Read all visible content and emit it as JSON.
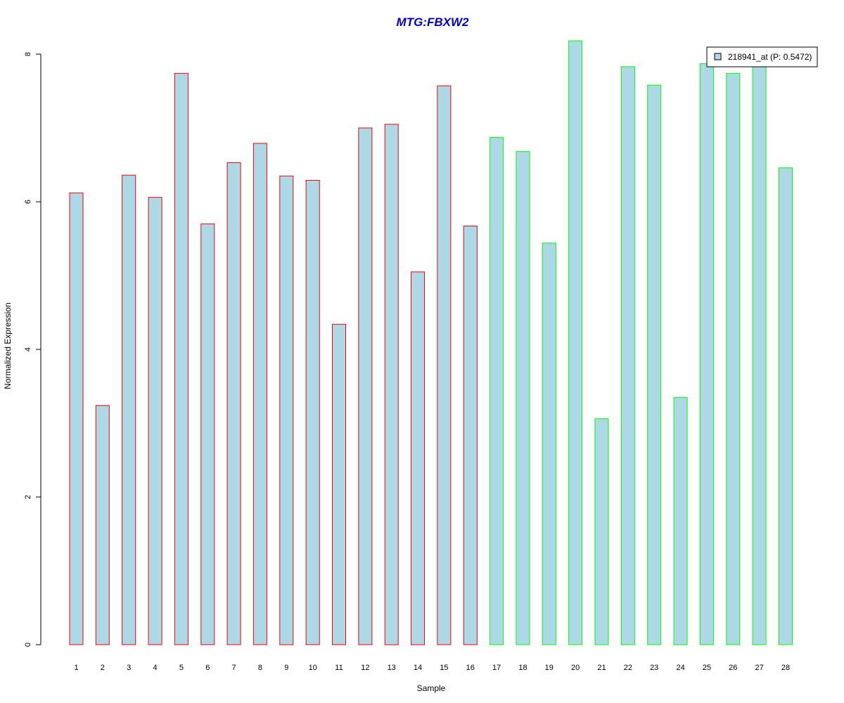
{
  "chart_data": {
    "type": "bar",
    "title": "MTG:FBXW2",
    "xlabel": "Sample",
    "ylabel": "Normalized Expression",
    "categories": [
      "1",
      "2",
      "3",
      "4",
      "5",
      "6",
      "7",
      "8",
      "9",
      "10",
      "11",
      "12",
      "13",
      "14",
      "15",
      "16",
      "17",
      "18",
      "19",
      "20",
      "21",
      "22",
      "23",
      "24",
      "25",
      "26",
      "27",
      "28"
    ],
    "values": [
      6.12,
      3.24,
      6.36,
      6.06,
      7.74,
      5.7,
      6.53,
      6.79,
      6.35,
      6.29,
      4.34,
      7.0,
      7.05,
      5.05,
      7.57,
      5.67,
      6.87,
      6.68,
      5.44,
      8.18,
      3.06,
      7.83,
      7.58,
      3.35,
      7.87,
      7.74,
      7.88,
      6.46
    ],
    "groups": [
      1,
      1,
      1,
      1,
      1,
      1,
      1,
      1,
      1,
      1,
      1,
      1,
      1,
      1,
      1,
      1,
      2,
      2,
      2,
      2,
      2,
      2,
      2,
      2,
      2,
      2,
      2,
      2
    ],
    "ylim": [
      0,
      8.2
    ],
    "yticks": [
      0,
      2,
      4,
      6,
      8
    ],
    "grid": false,
    "legend": {
      "label": "218941_at (P: 0.5472)",
      "placement": "top-right"
    },
    "colors": {
      "fill": "#add8e6",
      "group1_border": "#ff0000",
      "group2_border": "#00ff00",
      "title": "#0000cc"
    }
  }
}
